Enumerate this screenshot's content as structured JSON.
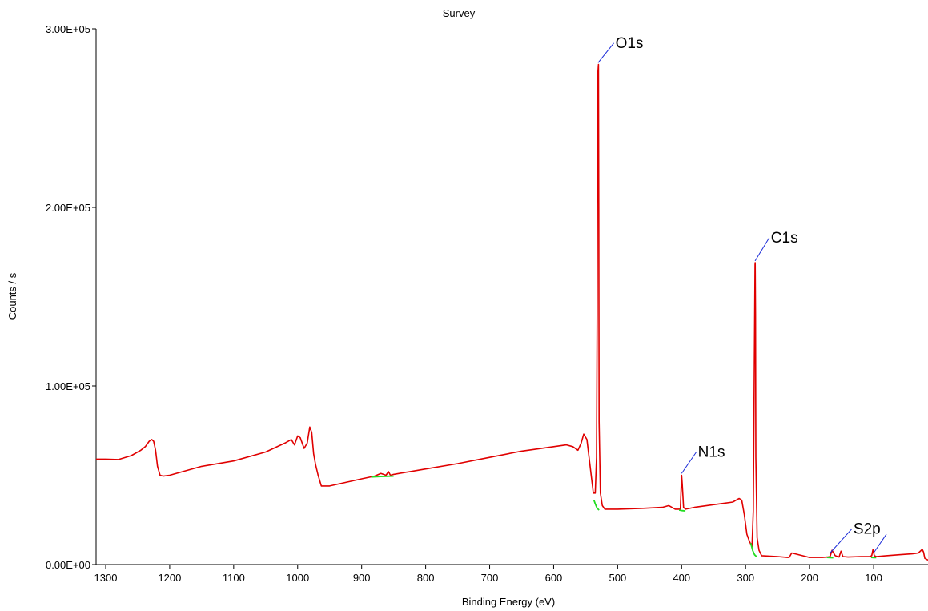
{
  "chart_data": {
    "type": "line",
    "title": "Survey",
    "xlabel": "Binding Energy (eV)",
    "ylabel": "Counts / s",
    "xlim": [
      1315,
      15
    ],
    "ylim": [
      0,
      300000
    ],
    "x_reversed": true,
    "grid": false,
    "legend": "none",
    "xticks": [
      1300,
      1200,
      1100,
      1000,
      900,
      800,
      700,
      600,
      500,
      400,
      300,
      200,
      100
    ],
    "yticks": [
      {
        "value": 0,
        "label": "0.00E+00"
      },
      {
        "value": 100000,
        "label": "1.00E+05"
      },
      {
        "value": 200000,
        "label": "2.00E+05"
      },
      {
        "value": 300000,
        "label": "3.00E+05"
      }
    ],
    "colors": {
      "spectrum": "#e00000",
      "background": "#22dd22",
      "annotation_line": "#1a2ad8",
      "axes": "#000000"
    },
    "series": [
      {
        "role": "spectrum",
        "x": [
          1315,
          1300,
          1280,
          1260,
          1245,
          1238,
          1232,
          1228,
          1225,
          1222,
          1219,
          1215,
          1210,
          1200,
          1150,
          1100,
          1050,
          1020,
          1010,
          1005,
          1000,
          996,
          990,
          985,
          981,
          978,
          975,
          972,
          968,
          963,
          950,
          900,
          880,
          870,
          862,
          858,
          855,
          850,
          800,
          750,
          700,
          650,
          600,
          580,
          570,
          562,
          557,
          553,
          548,
          543,
          538,
          535,
          533,
          532,
          531,
          530,
          529.5,
          529,
          527,
          524,
          520,
          500,
          460,
          430,
          420,
          410,
          402,
          400,
          399,
          397,
          394,
          380,
          340,
          320,
          315,
          310,
          306,
          302,
          298,
          294,
          290,
          288,
          286,
          285.3,
          285,
          284.5,
          284,
          282,
          279,
          275,
          250,
          235,
          232,
          228,
          200,
          180,
          172,
          168,
          165,
          160,
          154,
          151,
          148,
          140,
          120,
          106,
          103,
          101,
          99,
          96,
          80,
          60,
          40,
          30,
          24,
          22,
          20,
          15
        ],
        "y": [
          59000,
          59000,
          58800,
          61000,
          64000,
          66000,
          69000,
          70000,
          69000,
          64000,
          55000,
          50000,
          49500,
          50000,
          55000,
          58000,
          63000,
          68000,
          70000,
          67000,
          72000,
          71000,
          65000,
          68000,
          77000,
          74000,
          62000,
          56000,
          50000,
          44000,
          44000,
          48000,
          49500,
          51000,
          50000,
          52000,
          50000,
          50500,
          53500,
          56500,
          60000,
          63500,
          66000,
          67000,
          66000,
          64000,
          68000,
          73000,
          70000,
          55000,
          40000,
          40000,
          60000,
          140000,
          275000,
          280000,
          200000,
          80000,
          40000,
          33000,
          31000,
          31000,
          31500,
          32000,
          33000,
          31000,
          31000,
          50000,
          45000,
          32000,
          31000,
          32000,
          34000,
          35000,
          36000,
          37000,
          36000,
          28000,
          17000,
          13000,
          10000,
          30000,
          130000,
          168000,
          169000,
          140000,
          60000,
          15000,
          8000,
          5000,
          4500,
          4000,
          4000,
          6500,
          4000,
          4000,
          4200,
          4500,
          8000,
          5000,
          4200,
          7500,
          4500,
          4200,
          4500,
          4500,
          5000,
          8500,
          5000,
          4500,
          5000,
          5500,
          6000,
          6500,
          8500,
          7000,
          3500,
          2500
        ]
      },
      {
        "role": "background",
        "segments": [
          {
            "x": [
              885,
              880,
              870,
              860,
              850
            ],
            "y": [
              49000,
              49100,
              49300,
              49400,
              49500
            ]
          },
          {
            "x": [
              537,
              535,
              532,
              529
            ],
            "y": [
              36000,
              34000,
              31500,
              30500
            ]
          },
          {
            "x": [
              404,
              399,
              394
            ],
            "y": [
              30500,
              30200,
              30000
            ]
          },
          {
            "x": [
              292,
              289,
              286,
              283
            ],
            "y": [
              12000,
              8000,
              5500,
              4500
            ]
          },
          {
            "x": [
              173,
              168,
              163
            ],
            "y": [
              4000,
              3900,
              3800
            ]
          },
          {
            "x": [
              104,
              100,
              96
            ],
            "y": [
              4000,
              3900,
              3900
            ]
          }
        ]
      }
    ],
    "annotations": [
      {
        "label": "O1s",
        "x": 530.5,
        "y": 281000,
        "label_x": 506,
        "label_y": 292000
      },
      {
        "label": "C1s",
        "x": 285.2,
        "y": 170000,
        "label_x": 263,
        "label_y": 183000
      },
      {
        "label": "N1s",
        "x": 400,
        "y": 51000,
        "label_x": 377,
        "label_y": 63000
      },
      {
        "label": "S2p",
        "x": 168,
        "y": 6500,
        "label_x": 134,
        "label_y": 20000
      },
      {
        "label": "",
        "x": 100,
        "y": 6500,
        "label_x": 80,
        "label_y": 17000
      }
    ]
  }
}
